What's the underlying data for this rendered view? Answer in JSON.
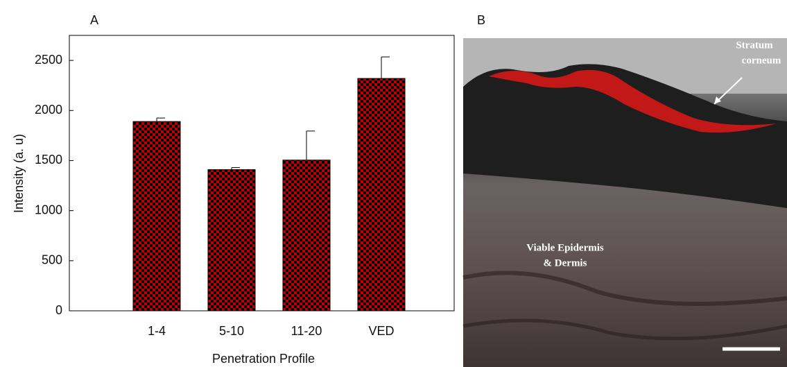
{
  "chart_data": {
    "type": "bar",
    "panel_label": "A",
    "xlabel": "Penetration Profile",
    "ylabel": "Intensity (a. u)",
    "categories": [
      "1-4",
      "5-10",
      "11-20",
      "VED"
    ],
    "values": [
      1890,
      1410,
      1505,
      2320
    ],
    "errors": [
      35,
      20,
      290,
      215
    ],
    "color": "#c00000",
    "ylim": [
      0,
      2750
    ],
    "yticks": [
      0,
      500,
      1000,
      1500,
      2000,
      2500
    ],
    "grid": false
  },
  "image_panel": {
    "label": "B",
    "annotations": [
      {
        "lines": [
          "Stratum",
          "corneum"
        ]
      },
      {
        "lines": [
          "Viable Epidermis",
          "& Dermis"
        ]
      }
    ]
  }
}
